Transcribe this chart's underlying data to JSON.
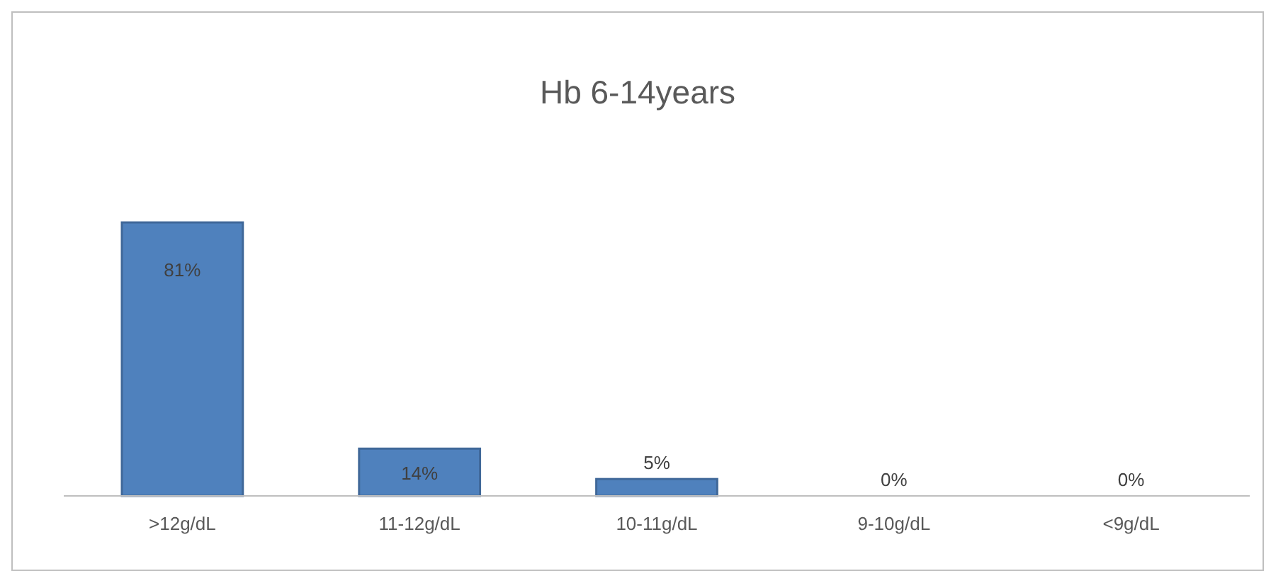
{
  "chart_data": {
    "type": "bar",
    "title": "Hb 6-14years",
    "categories": [
      ">12g/dL",
      "11-12g/dL",
      "10-11g/dL",
      "9-10g/dL",
      "<9g/dL"
    ],
    "values": [
      81,
      14,
      5,
      0,
      0
    ],
    "value_labels": [
      "81%",
      "14%",
      "5%",
      "0%",
      "0%"
    ],
    "color": "#4f81bd"
  }
}
